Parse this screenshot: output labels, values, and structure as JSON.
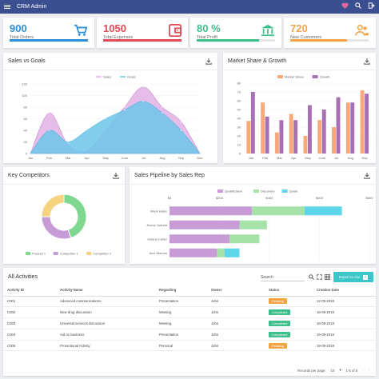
{
  "app": {
    "title": "CRM Admin"
  },
  "colors": {
    "header": "#3a4f8f",
    "pink": "#e0679b",
    "teal": "#3cc6c9"
  },
  "stats": [
    {
      "value": "900",
      "label": "Total Orders",
      "color": "#2f8fd6",
      "fill_pct": 100,
      "icon": "cart-icon"
    },
    {
      "value": "1050",
      "label": "Total Expenses",
      "color": "#e04a55",
      "fill_pct": 100,
      "icon": "wallet-icon"
    },
    {
      "value": "80 %",
      "label": "Total Profit",
      "color": "#3cbf8a",
      "fill_pct": 80,
      "icon": "bank-icon"
    },
    {
      "value": "720",
      "label": "New Customers",
      "color": "#f0a446",
      "fill_pct": 72,
      "icon": "users-icon"
    }
  ],
  "cards": {
    "sales_goals": "Sales vs Goals",
    "market_share": "Market Share & Growth",
    "competitors": "Key Competitors",
    "pipeline": "Sales Pipeline by Sales Rep",
    "activities": "All Activities"
  },
  "chart_data": [
    {
      "type": "area",
      "title": "Sales vs Goals",
      "categories": [
        "Jan",
        "Feb",
        "Mar",
        "Apr",
        "May",
        "June",
        "Jul",
        "Aug",
        "Sep",
        "Dec"
      ],
      "series": [
        {
          "name": "Sales",
          "values": [
            0,
            70,
            15,
            5,
            40,
            80,
            115,
            80,
            55,
            0
          ],
          "color": "#e3b6e6"
        },
        {
          "name": "Goals",
          "values": [
            0,
            40,
            20,
            40,
            60,
            75,
            90,
            70,
            40,
            0
          ],
          "color": "#6ec6ea"
        }
      ],
      "yticks": [
        0,
        20,
        40,
        60,
        80,
        100,
        120
      ],
      "ylim": [
        0,
        120
      ]
    },
    {
      "type": "bar",
      "title": "Market Share & Growth",
      "categories": [
        "Jan",
        "Feb",
        "Mar",
        "Apr",
        "May",
        "June",
        "Jul",
        "Aug",
        "Sep"
      ],
      "series": [
        {
          "name": "Market Share",
          "values": [
            37,
            58,
            24,
            45,
            20,
            38,
            30,
            58,
            72
          ],
          "color": "#f7a97a"
        },
        {
          "name": "Growth",
          "values": [
            70,
            42,
            38,
            38,
            55,
            50,
            64,
            58,
            68
          ],
          "color": "#a86fb4"
        }
      ],
      "yticks": [
        0,
        10,
        20,
        30,
        40,
        50,
        60,
        70,
        80
      ],
      "ylim": [
        0,
        80
      ]
    },
    {
      "type": "pie",
      "title": "Key Competitors",
      "series": [
        {
          "name": "Product 1",
          "values": [
            45
          ],
          "color": "#7ed88f"
        },
        {
          "name": "Competitor 1",
          "values": [
            30
          ],
          "color": "#c79cd6"
        },
        {
          "name": "Competitor 2",
          "values": [
            25
          ],
          "color": "#f5d37f"
        }
      ]
    },
    {
      "type": "bar",
      "title": "Sales Pipeline by Sales Rep",
      "categories": [
        "Mack Hales",
        "Jimmy Joanna",
        "Joanna Carter",
        "Alex Morrow"
      ],
      "series": [
        {
          "name": "Qualification",
          "values": [
            330,
            280,
            240,
            190
          ],
          "color": "#c79cd6"
        },
        {
          "name": "Discovery",
          "values": [
            210,
            110,
            120,
            30
          ],
          "color": "#a7e3a8"
        },
        {
          "name": "Quote",
          "values": [
            150,
            0,
            0,
            60
          ],
          "color": "#5ed6ea"
        }
      ],
      "xticks": [
        "$0",
        "$200",
        "$400",
        "$600",
        "$800"
      ],
      "xlim": [
        0,
        800
      ]
    }
  ],
  "activities": {
    "search_label": "Search",
    "export_label": "Export to csv",
    "columns": [
      "Activity ID",
      "Activity Name",
      "Regarding",
      "Owner",
      "Status",
      "Creation Date"
    ],
    "rows": [
      [
        "C001",
        "Advanced communications",
        "Presentation",
        "John",
        "Pending",
        "12-09-2019"
      ],
      [
        "C002",
        "New drug discussion",
        "Meeting",
        "John",
        "Completed",
        "18-09-2019"
      ],
      [
        "C003",
        "Universal services discussion",
        "Meeting",
        "John",
        "Completed",
        "18-09-2019"
      ],
      [
        "C004",
        "Aid on business",
        "Presentation",
        "John",
        "Completed",
        "19-09-2019"
      ],
      [
        "C005",
        "Promotional Activity",
        "Personal",
        "John",
        "Pending",
        "19-09-2019"
      ]
    ],
    "status_colors": {
      "Pending": "#f0a446",
      "Completed": "#3cbf8a"
    },
    "pagination": {
      "rows_label": "Records per page:",
      "rows_value": "10",
      "range": "1-5 of 5"
    }
  }
}
